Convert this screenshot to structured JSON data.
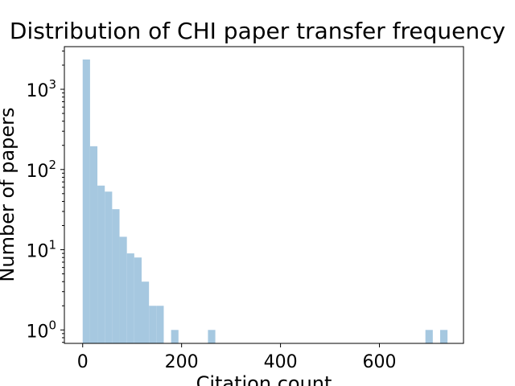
{
  "chart_data": {
    "type": "bar",
    "title": "Distribution of CHI paper transfer frequency",
    "xlabel": "Citation count",
    "ylabel": "Number of papers",
    "x_scale": "linear",
    "y_scale": "log",
    "xlim": [
      -37,
      770
    ],
    "ylim": [
      0.68,
      3400
    ],
    "x_ticks": [
      0,
      200,
      400,
      600
    ],
    "x_tick_labels": [
      "0",
      "200",
      "400",
      "600"
    ],
    "y_ticks": [
      1,
      10,
      100,
      1000
    ],
    "y_tick_labels": [
      "10^0",
      "10^1",
      "10^2",
      "10^3"
    ],
    "bin_width": 14.9,
    "bins": [
      {
        "start": 0.0,
        "count": 2350
      },
      {
        "start": 14.9,
        "count": 195
      },
      {
        "start": 29.8,
        "count": 63
      },
      {
        "start": 44.7,
        "count": 53
      },
      {
        "start": 59.6,
        "count": 32
      },
      {
        "start": 74.5,
        "count": 14.5
      },
      {
        "start": 89.4,
        "count": 9
      },
      {
        "start": 104.3,
        "count": 8
      },
      {
        "start": 119.2,
        "count": 4
      },
      {
        "start": 134.1,
        "count": 2
      },
      {
        "start": 149.0,
        "count": 2
      },
      {
        "start": 178.8,
        "count": 1
      },
      {
        "start": 253.3,
        "count": 1
      },
      {
        "start": 693.0,
        "count": 1
      },
      {
        "start": 722.8,
        "count": 1
      }
    ],
    "bar_color": "#a6c8e0",
    "grid": false,
    "legend": "none"
  }
}
